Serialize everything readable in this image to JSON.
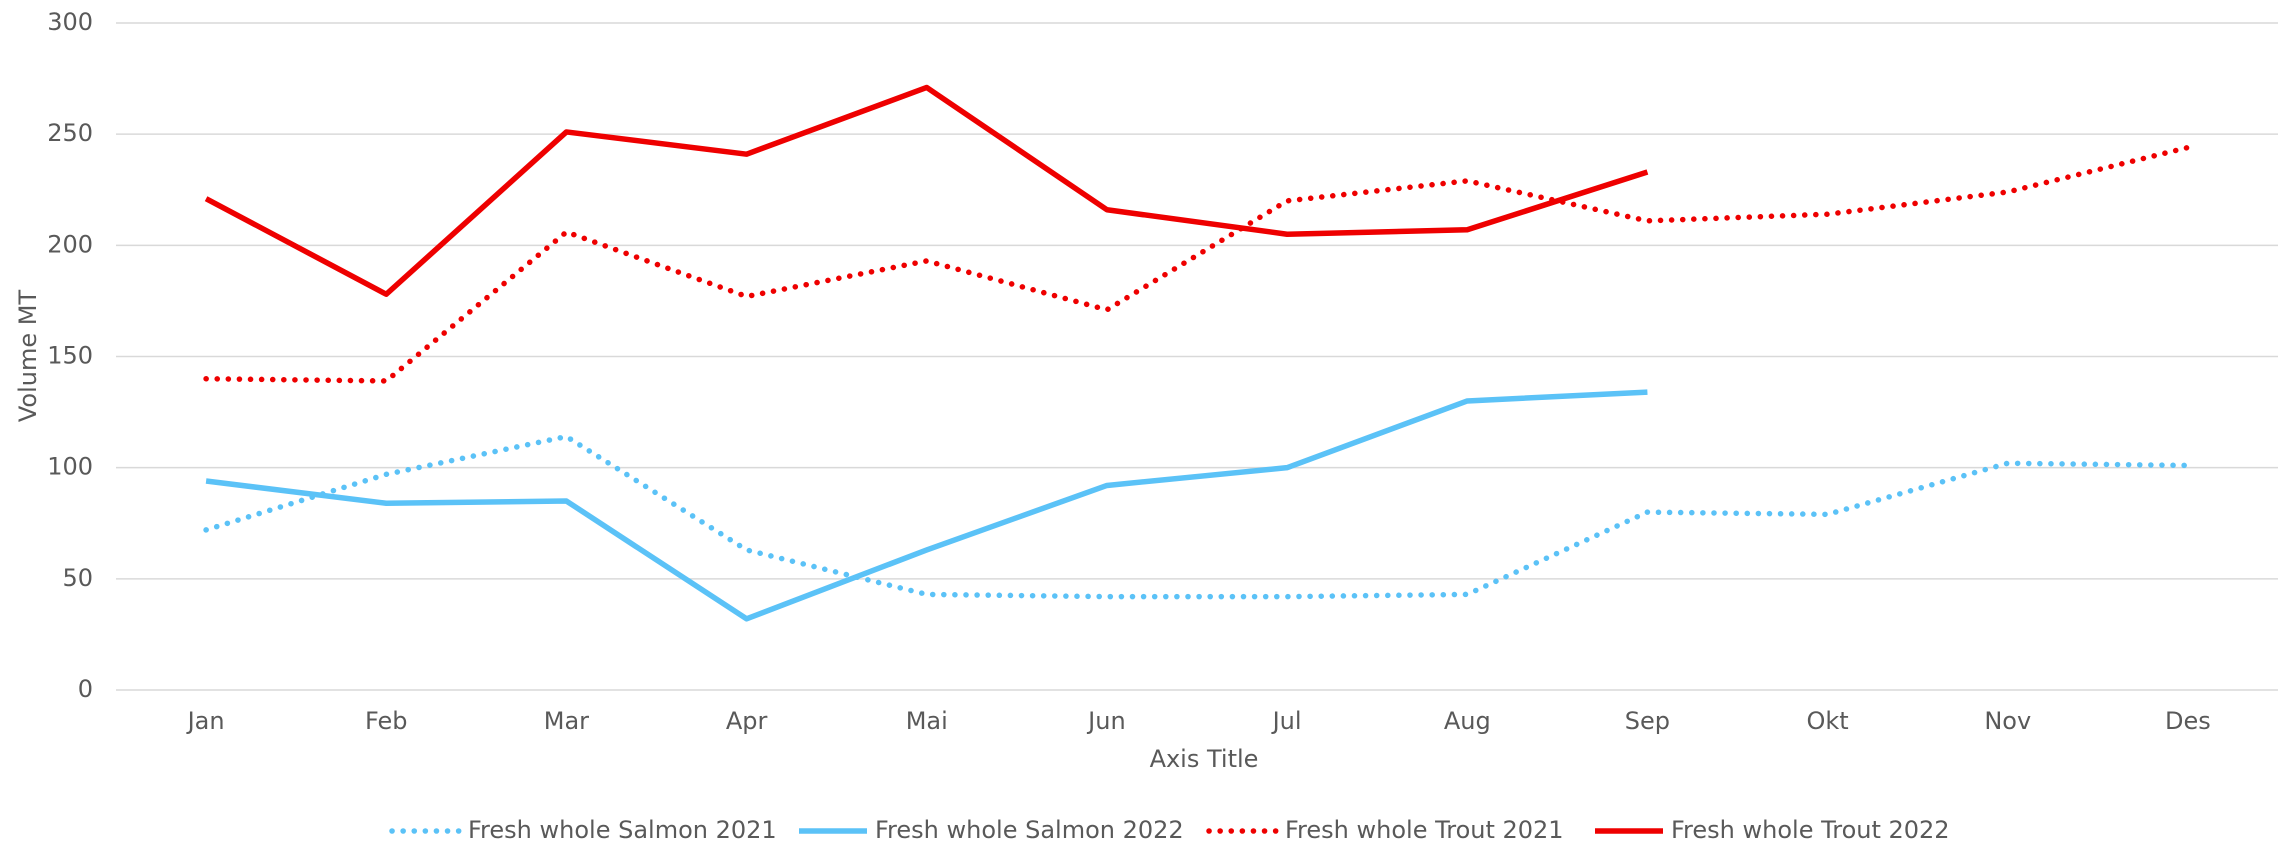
{
  "chart_data": {
    "type": "line",
    "x_label": "Axis Title",
    "y_label": "Volume MT",
    "categories": [
      "Jan",
      "Feb",
      "Mar",
      "Apr",
      "Mai",
      "Jun",
      "Jul",
      "Aug",
      "Sep",
      "Okt",
      "Nov",
      "Des"
    ],
    "series": [
      {
        "name": "Fresh whole Salmon 2021",
        "color": "#5bc2f7",
        "dash": "dotted",
        "values": [
          72,
          97,
          114,
          63,
          43,
          42,
          42,
          43,
          80,
          79,
          102,
          101
        ]
      },
      {
        "name": "Fresh whole Salmon 2022",
        "color": "#5bc2f7",
        "dash": "solid",
        "values": [
          94,
          84,
          85,
          32,
          63,
          92,
          100,
          130,
          134,
          null,
          null,
          null
        ]
      },
      {
        "name": "Fresh whole Trout 2021",
        "color": "#ee0000",
        "dash": "dotted",
        "values": [
          140,
          139,
          206,
          177,
          193,
          171,
          220,
          229,
          211,
          214,
          224,
          244
        ]
      },
      {
        "name": "Fresh whole Trout 2022",
        "color": "#ee0000",
        "dash": "solid",
        "values": [
          221,
          178,
          251,
          241,
          271,
          216,
          205,
          207,
          233,
          null,
          null,
          null
        ]
      }
    ],
    "ylim": [
      0,
      300
    ],
    "yticks": [
      0,
      50,
      100,
      150,
      200,
      250,
      300
    ],
    "grid": true,
    "legend": "bottom"
  }
}
